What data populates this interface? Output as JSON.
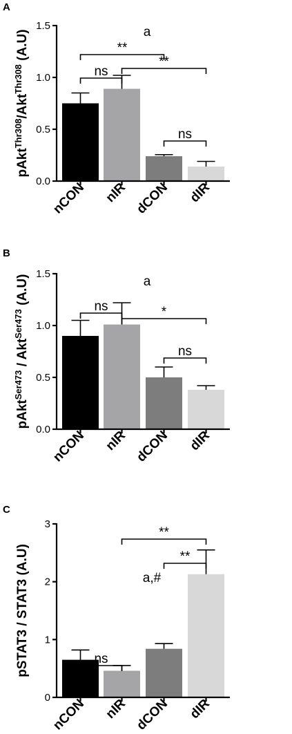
{
  "chart_data": [
    {
      "panel": "A",
      "type": "bar",
      "categories": [
        "nCON",
        "nIR",
        "dCON",
        "dIR"
      ],
      "values": [
        0.75,
        0.89,
        0.24,
        0.14
      ],
      "errors": [
        0.1,
        0.13,
        0.015,
        0.05
      ],
      "colors": [
        "#000000",
        "#a5a5a7",
        "#7d7d7d",
        "#d8d8d8"
      ],
      "ylabel_parts": [
        "pAkt",
        "Thr308",
        "/Akt",
        "Thr308",
        " (A.U)"
      ],
      "ylim": [
        0,
        1.5
      ],
      "yticks": [
        "0.0",
        "0.5",
        "1.0",
        "1.5"
      ],
      "annotation": "a",
      "comparisons": [
        {
          "between": [
            "nCON",
            "nIR"
          ],
          "label": "ns"
        },
        {
          "between": [
            "nCON",
            "dCON"
          ],
          "label": "**"
        },
        {
          "between": [
            "nIR",
            "dIR"
          ],
          "label": "**"
        },
        {
          "between": [
            "dCON",
            "dIR"
          ],
          "label": "ns"
        }
      ]
    },
    {
      "panel": "B",
      "type": "bar",
      "categories": [
        "nCON",
        "nIR",
        "dCON",
        "dIR"
      ],
      "values": [
        0.9,
        1.01,
        0.5,
        0.38
      ],
      "errors": [
        0.15,
        0.21,
        0.1,
        0.04
      ],
      "colors": [
        "#000000",
        "#a5a5a7",
        "#7d7d7d",
        "#d8d8d8"
      ],
      "ylabel_parts": [
        "pAkt",
        "Ser473",
        " / Akt",
        "Ser473",
        " (A.U)"
      ],
      "ylim": [
        0,
        1.5
      ],
      "yticks": [
        "0.0",
        "0.5",
        "1.0",
        "1.5"
      ],
      "annotation": "a",
      "comparisons": [
        {
          "between": [
            "nCON",
            "nIR"
          ],
          "label": "ns"
        },
        {
          "between": [
            "nIR",
            "dIR"
          ],
          "label": "*"
        },
        {
          "between": [
            "dCON",
            "dIR"
          ],
          "label": "ns"
        }
      ]
    },
    {
      "panel": "C",
      "type": "bar",
      "categories": [
        "nCON",
        "nIR",
        "dCON",
        "dIR"
      ],
      "values": [
        0.65,
        0.46,
        0.84,
        2.13
      ],
      "errors": [
        0.17,
        0.09,
        0.09,
        0.42
      ],
      "colors": [
        "#000000",
        "#a5a5a7",
        "#7d7d7d",
        "#d8d8d8"
      ],
      "ylabel_parts": [
        "pSTAT3 / STAT3 (A.U)"
      ],
      "ylim": [
        0,
        3
      ],
      "yticks": [
        "0",
        "1",
        "2",
        "3"
      ],
      "annotation": "a,#",
      "comparisons": [
        {
          "between": [
            "nCON",
            "nIR"
          ],
          "label": "ns"
        },
        {
          "between": [
            "nIR",
            "dIR"
          ],
          "label": "**"
        },
        {
          "between": [
            "dCON",
            "dIR"
          ],
          "label": "**"
        }
      ]
    }
  ]
}
